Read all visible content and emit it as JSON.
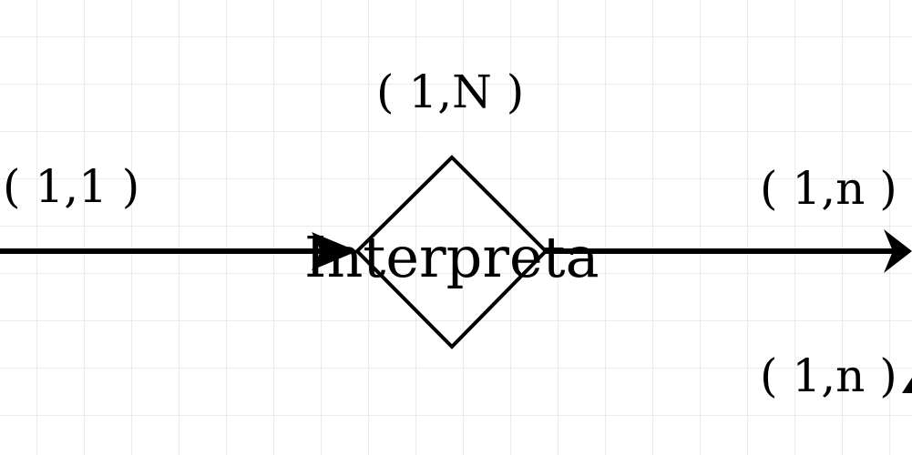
{
  "diagram": {
    "relationship": {
      "name": "Interpreta"
    },
    "cardinalities": {
      "top": "( 1,N )",
      "left": "( 1,1 )",
      "right": "( 1,n )",
      "bottom_right": "( 1,n )"
    },
    "colors": {
      "stroke": "#000000",
      "grid": "#ececec",
      "background": "#ffffff"
    }
  }
}
